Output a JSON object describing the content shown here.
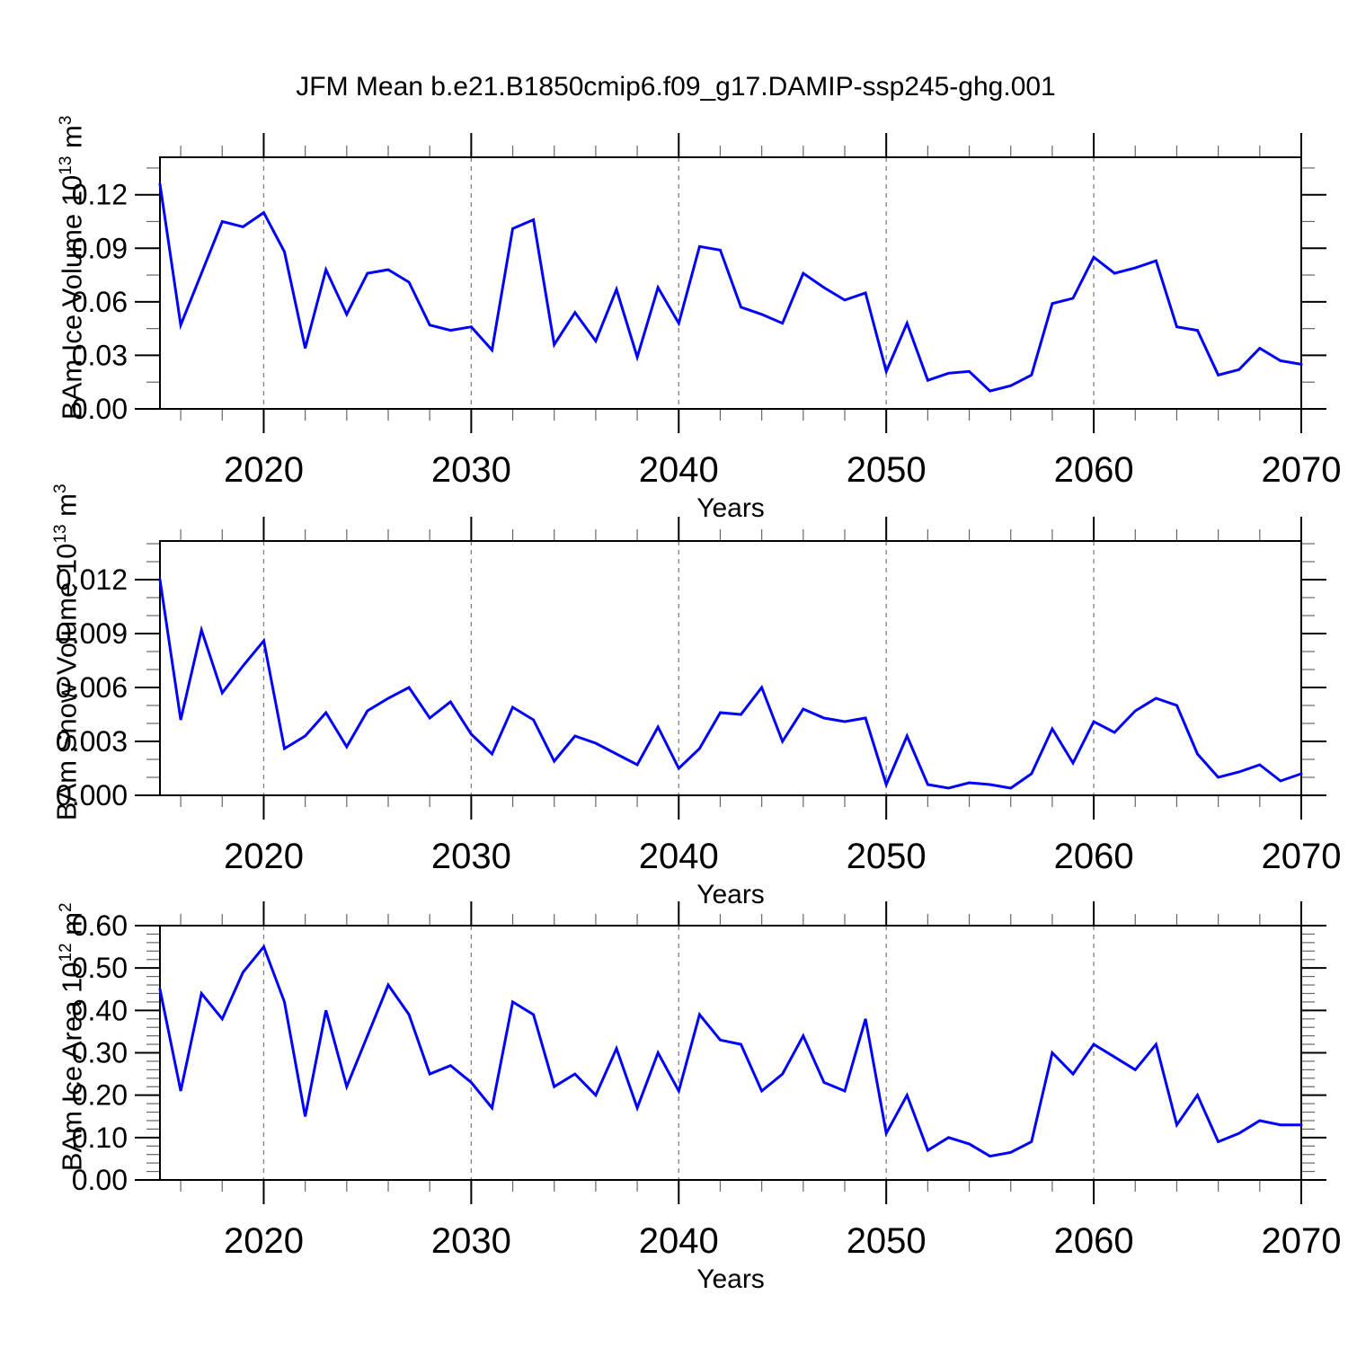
{
  "chart_data": {
    "type": "line",
    "title": "JFM Mean b.e21.B1850cmip6.f09_g17.DAMIP-ssp245-ghg.001",
    "line_color": "#0000ff",
    "grid_color": "#808080",
    "frame_color": "#000000",
    "minor_tick_color": "#666666",
    "text_color": "#000000",
    "legend": "none",
    "grid": "vertical-dashed-at-decades",
    "x": {
      "label": "Years",
      "lim": [
        2015,
        2070
      ],
      "major_ticks": [
        2020,
        2030,
        2040,
        2050,
        2060,
        2070
      ],
      "major_tick_labels": [
        "2020",
        "2030",
        "2040",
        "2050",
        "2060",
        "2070"
      ],
      "minor_step": 2,
      "gridline_years": [
        2020,
        2030,
        2040,
        2050,
        2060
      ],
      "years": [
        2015,
        2016,
        2017,
        2018,
        2019,
        2020,
        2021,
        2022,
        2023,
        2024,
        2025,
        2026,
        2027,
        2028,
        2029,
        2030,
        2031,
        2032,
        2033,
        2034,
        2035,
        2036,
        2037,
        2038,
        2039,
        2040,
        2041,
        2042,
        2043,
        2044,
        2045,
        2046,
        2047,
        2048,
        2049,
        2050,
        2051,
        2052,
        2053,
        2054,
        2055,
        2056,
        2057,
        2058,
        2059,
        2060,
        2061,
        2062,
        2063,
        2064,
        2065,
        2066,
        2067,
        2068,
        2069,
        2070
      ]
    },
    "panels": [
      {
        "id": "ice-volume",
        "ylabel": {
          "text": "BAm Ice Volume 10",
          "exp": "13",
          "unit": " m",
          "unit_exp": "3"
        },
        "ylim": [
          0,
          0.141
        ],
        "y_major_ticks": [
          0.0,
          0.03,
          0.06,
          0.09,
          0.12
        ],
        "y_major_tick_labels": [
          "0.00",
          "0.03",
          "0.06",
          "0.09",
          "0.12"
        ],
        "y_minor_step": 0.015,
        "values": [
          0.126,
          0.047,
          0.076,
          0.105,
          0.102,
          0.11,
          0.088,
          0.034,
          0.078,
          0.053,
          0.076,
          0.078,
          0.071,
          0.047,
          0.044,
          0.046,
          0.033,
          0.101,
          0.106,
          0.036,
          0.054,
          0.038,
          0.067,
          0.029,
          0.068,
          0.048,
          0.091,
          0.089,
          0.057,
          0.053,
          0.048,
          0.076,
          0.068,
          0.061,
          0.065,
          0.021,
          0.048,
          0.016,
          0.02,
          0.021,
          0.01,
          0.013,
          0.019,
          0.059,
          0.062,
          0.085,
          0.076,
          0.079,
          0.083,
          0.046,
          0.044,
          0.019,
          0.022,
          0.034,
          0.027,
          0.025
        ]
      },
      {
        "id": "snow-volume",
        "ylabel": {
          "text": "BAm Snow Volume 10",
          "exp": "13",
          "unit": " m",
          "unit_exp": "3"
        },
        "ylim": [
          0,
          0.01415
        ],
        "y_major_ticks": [
          0.0,
          0.003,
          0.006,
          0.009,
          0.012
        ],
        "y_major_tick_labels": [
          "0.000",
          "0.003",
          "0.006",
          "0.009",
          "0.012"
        ],
        "y_minor_step": 0.001,
        "values": [
          0.012,
          0.0042,
          0.0092,
          0.0057,
          0.0072,
          0.0086,
          0.0026,
          0.0033,
          0.0046,
          0.0027,
          0.0047,
          0.0054,
          0.006,
          0.0043,
          0.0052,
          0.0034,
          0.0023,
          0.0049,
          0.0042,
          0.0019,
          0.0033,
          0.0029,
          0.0023,
          0.0017,
          0.0038,
          0.0015,
          0.0026,
          0.0046,
          0.0045,
          0.006,
          0.003,
          0.0048,
          0.0043,
          0.0041,
          0.0043,
          0.0006,
          0.0033,
          0.0006,
          0.0004,
          0.0007,
          0.0006,
          0.0004,
          0.0012,
          0.0037,
          0.0018,
          0.0041,
          0.0035,
          0.0047,
          0.0054,
          0.005,
          0.0023,
          0.001,
          0.0013,
          0.0017,
          0.0008,
          0.0012
        ]
      },
      {
        "id": "ice-area",
        "ylabel": {
          "text": "BAm Ice Area 10",
          "exp": "12",
          "unit": " m",
          "unit_exp": "2"
        },
        "ylim": [
          0,
          0.6
        ],
        "y_major_ticks": [
          0.0,
          0.1,
          0.2,
          0.3,
          0.4,
          0.5,
          0.6
        ],
        "y_major_tick_labels": [
          "0.00",
          "0.10",
          "0.20",
          "0.30",
          "0.40",
          "0.50",
          "0.60"
        ],
        "y_minor_step": 0.02,
        "values": [
          0.45,
          0.21,
          0.44,
          0.38,
          0.49,
          0.55,
          0.42,
          0.15,
          0.4,
          0.22,
          0.34,
          0.46,
          0.39,
          0.25,
          0.27,
          0.23,
          0.17,
          0.42,
          0.39,
          0.22,
          0.25,
          0.2,
          0.31,
          0.17,
          0.3,
          0.21,
          0.39,
          0.33,
          0.32,
          0.21,
          0.25,
          0.34,
          0.23,
          0.21,
          0.38,
          0.11,
          0.2,
          0.07,
          0.1,
          0.085,
          0.056,
          0.065,
          0.09,
          0.3,
          0.25,
          0.32,
          0.29,
          0.26,
          0.32,
          0.13,
          0.2,
          0.09,
          0.11,
          0.14,
          0.13,
          0.13
        ]
      }
    ]
  }
}
